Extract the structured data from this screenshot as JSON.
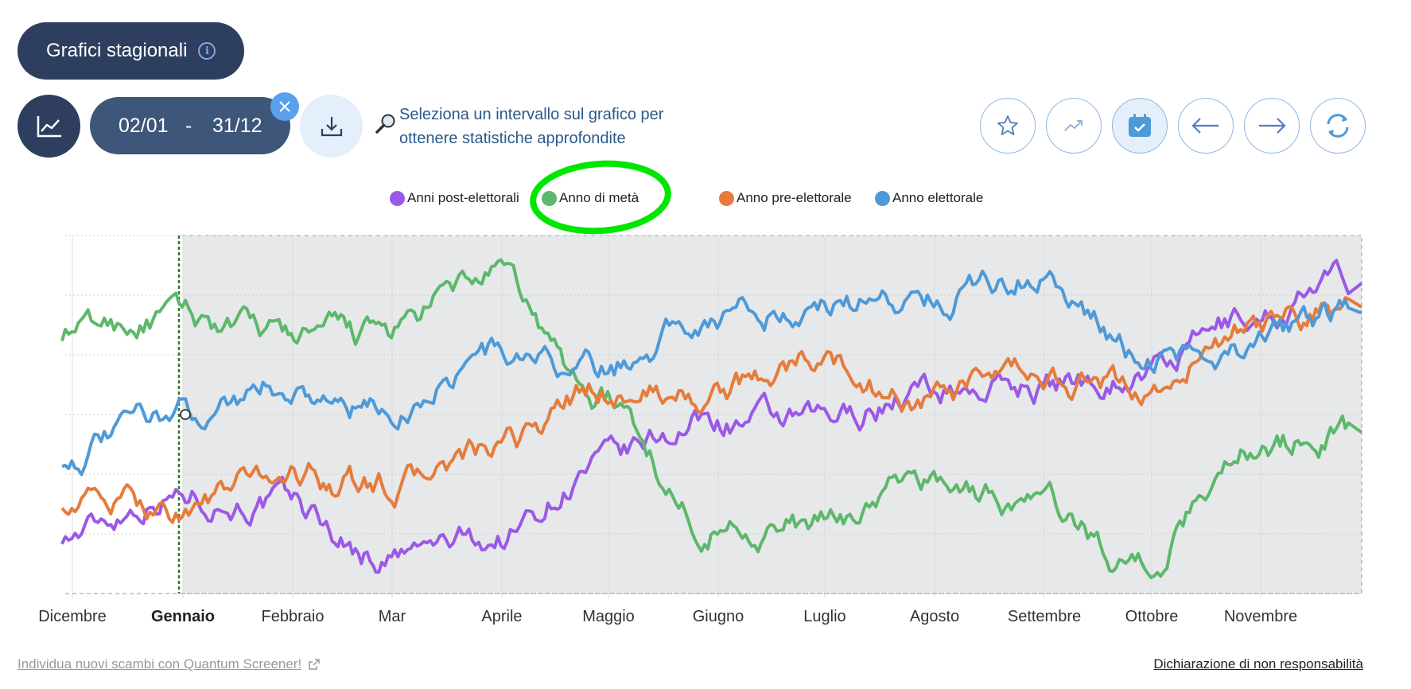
{
  "header": {
    "title": "Grafici stagionali",
    "info_icon": "info-icon"
  },
  "toolbar": {
    "chart_icon": "line-chart-icon",
    "date_from": "02/01",
    "date_separator": "-",
    "date_to": "31/12",
    "clear_icon": "close-icon",
    "download_icon": "download-icon",
    "hint_icon": "magnifier-icon",
    "hint_line1": "Seleziona un intervallo sul grafico per",
    "hint_line2": "ottenere statistiche approfondite",
    "right_buttons": [
      "star-icon",
      "trend-icon",
      "calendar-check-icon",
      "arrow-left-icon",
      "arrow-right-icon",
      "refresh-icon"
    ]
  },
  "footer": {
    "screener_link": "Individua nuovi scambi con Quantum Screener!",
    "disclaimer_link": "Dichiarazione di non responsabilità"
  },
  "colors": {
    "purple": "#9b59e6",
    "green": "#5cb86a",
    "orange": "#e57c3c",
    "blue": "#4e9ad8",
    "highlight": "#00e600"
  },
  "chart_data": {
    "type": "line",
    "x": [
      "Dicembre",
      "Gennaio",
      "Febbraio",
      "Mar",
      "Aprile",
      "Maggio",
      "Giugno",
      "Luglio",
      "Agosto",
      "Settembre",
      "Ottobre",
      "Novembre",
      "Dicembre"
    ],
    "x_labels": [
      "Dicembre",
      "Gennaio",
      "Febbraio",
      "Mar",
      "Aprile",
      "Maggio",
      "Giugno",
      "Luglio",
      "Agosto",
      "Settembre",
      "Ottobre",
      "Novembre"
    ],
    "bold_label": "Gennaio",
    "ylim": [
      0,
      6
    ],
    "y_tick_labels": "none",
    "grid": true,
    "selection": {
      "from": "Gennaio",
      "to": "Dicembre"
    },
    "legend_position": "top-center",
    "series": [
      {
        "name": "Anni post-elettorali",
        "color": "#9b59e6",
        "values": [
          1.0,
          1.7,
          1.5,
          0.6,
          0.9,
          2.1,
          2.9,
          2.8,
          3.4,
          3.5,
          3.7,
          4.6,
          5.2
        ]
      },
      {
        "name": "Anno di metà",
        "color": "#5cb86a",
        "values": [
          4.4,
          4.6,
          4.3,
          4.3,
          5.3,
          3.3,
          1.2,
          1.1,
          1.9,
          1.5,
          0.5,
          2.5,
          2.7
        ]
      },
      {
        "name": "Anno pre-elettorale",
        "color": "#e57c3c",
        "values": [
          1.6,
          1.4,
          2.0,
          1.8,
          2.3,
          3.4,
          3.3,
          3.9,
          3.2,
          3.6,
          3.4,
          4.4,
          4.8
        ]
      },
      {
        "name": "Anno elettorale",
        "color": "#4e9ad8",
        "values": [
          2.3,
          3.0,
          3.5,
          3.0,
          4.0,
          3.7,
          4.7,
          4.8,
          5.0,
          5.4,
          4.0,
          4.1,
          4.7
        ]
      }
    ]
  }
}
